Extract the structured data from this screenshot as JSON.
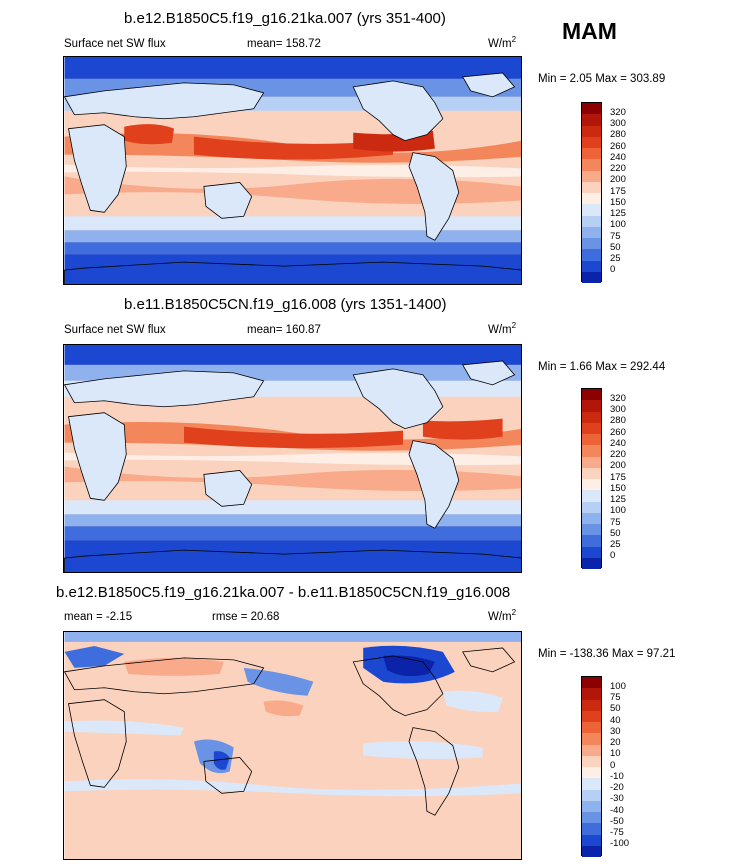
{
  "season": "MAM",
  "chart_data": [
    {
      "type": "heatmap",
      "title": "b.e12.B1850C5.f19_g16.21ka.007 (yrs 351-400)",
      "variable": "Surface net SW flux",
      "mean_label": "mean= 158.72",
      "units": "W/m",
      "units_sup": "2",
      "range_label": "Min =   2.05 Max = 303.89",
      "levels": [
        "320",
        "300",
        "280",
        "260",
        "240",
        "220",
        "200",
        "175",
        "150",
        "125",
        "100",
        "75",
        "50",
        "25",
        "0"
      ],
      "colors": [
        "#8b0000",
        "#b2160a",
        "#cc2a10",
        "#e0401c",
        "#ee6438",
        "#f4865c",
        "#f8aa8a",
        "#fbd2bd",
        "#fdeee6",
        "#dbe8fa",
        "#b6cff5",
        "#8fb2ee",
        "#6a93e6",
        "#3f6ddd",
        "#1c48d1",
        "#0a23a8"
      ]
    },
    {
      "type": "heatmap",
      "title": "b.e11.B1850C5CN.f19_g16.008 (yrs 1351-1400)",
      "variable": "Surface net SW flux",
      "mean_label": "mean= 160.87",
      "units": "W/m",
      "units_sup": "2",
      "range_label": "Min =   1.66 Max = 292.44",
      "levels": [
        "320",
        "300",
        "280",
        "260",
        "240",
        "220",
        "200",
        "175",
        "150",
        "125",
        "100",
        "75",
        "50",
        "25",
        "0"
      ],
      "colors": [
        "#8b0000",
        "#b2160a",
        "#cc2a10",
        "#e0401c",
        "#ee6438",
        "#f4865c",
        "#f8aa8a",
        "#fbd2bd",
        "#fdeee6",
        "#dbe8fa",
        "#b6cff5",
        "#8fb2ee",
        "#6a93e6",
        "#3f6ddd",
        "#1c48d1",
        "#0a23a8"
      ]
    },
    {
      "type": "heatmap",
      "title": "b.e12.B1850C5.f19_g16.21ka.007 - b.e11.B1850C5CN.f19_g16.008",
      "mean_label": "mean =  -2.15",
      "rmse_label": "rmse =  20.68",
      "units": "W/m",
      "units_sup": "2",
      "range_label": "Min = -138.36 Max =  97.21",
      "levels": [
        "100",
        "75",
        "50",
        "40",
        "30",
        "20",
        "10",
        "0",
        "-10",
        "-20",
        "-30",
        "-40",
        "-50",
        "-75",
        "-100"
      ],
      "colors": [
        "#8b0000",
        "#b2160a",
        "#cc2a10",
        "#e0401c",
        "#ee6438",
        "#f4865c",
        "#f8aa8a",
        "#fbd2bd",
        "#fdeee6",
        "#dbe8fa",
        "#b6cff5",
        "#8fb2ee",
        "#6a93e6",
        "#3f6ddd",
        "#1c48d1",
        "#0a23a8"
      ]
    }
  ]
}
